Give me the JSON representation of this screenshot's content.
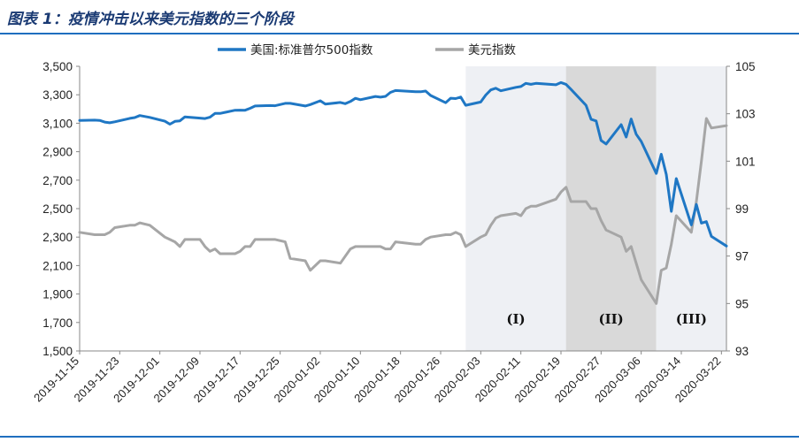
{
  "title": "图表 1：疫情冲击以来美元指数的三个阶段",
  "colors": {
    "spx": "#1f77c4",
    "dxy": "#a6a6a6",
    "band_light": "#eef0f4",
    "band_dark": "#d9d9d9",
    "rule": "#1f6fbf",
    "title": "#1a3a73"
  },
  "chart_data": {
    "type": "line",
    "title": "",
    "legend": [
      "美国:标准普尔500指数",
      "美元指数"
    ],
    "legend_position": "top",
    "x_tick_labels": [
      "2019-11-15",
      "2019-11-23",
      "2019-12-01",
      "2019-12-09",
      "2019-12-17",
      "2019-12-25",
      "2020-01-02",
      "2020-01-10",
      "2020-01-18",
      "2020-01-26",
      "2020-02-03",
      "2020-02-11",
      "2020-02-19",
      "2020-02-27",
      "2020-03-06",
      "2020-03-14",
      "2020-03-22"
    ],
    "x_range": [
      "2019-11-15",
      "2020-03-23"
    ],
    "y_left": {
      "min": 1500,
      "max": 3500,
      "ticks": [
        "1,500",
        "1,700",
        "1,900",
        "2,100",
        "2,300",
        "2,500",
        "2,700",
        "2,900",
        "3,100",
        "3,300",
        "3,500"
      ]
    },
    "y_right": {
      "min": 93,
      "max": 105,
      "ticks": [
        "93",
        "95",
        "97",
        "99",
        "101",
        "103",
        "105"
      ]
    },
    "phases": [
      {
        "label": "(I)",
        "start": "2020-01-31",
        "end": "2020-02-20",
        "shade": "light"
      },
      {
        "label": "(II)",
        "start": "2020-02-20",
        "end": "2020-03-09",
        "shade": "dark"
      },
      {
        "label": "(III)",
        "start": "2020-03-09",
        "end": "2020-03-23",
        "shade": "light"
      }
    ],
    "series": [
      {
        "name": "美国:标准普尔500指数",
        "axis": "left",
        "points": [
          [
            "2019-11-15",
            3120
          ],
          [
            "2019-11-18",
            3122
          ],
          [
            "2019-11-19",
            3120
          ],
          [
            "2019-11-20",
            3108
          ],
          [
            "2019-11-21",
            3103
          ],
          [
            "2019-11-22",
            3110
          ],
          [
            "2019-11-25",
            3134
          ],
          [
            "2019-11-26",
            3140
          ],
          [
            "2019-11-27",
            3154
          ],
          [
            "2019-11-29",
            3141
          ],
          [
            "2019-12-02",
            3114
          ],
          [
            "2019-12-03",
            3093
          ],
          [
            "2019-12-04",
            3113
          ],
          [
            "2019-12-05",
            3117
          ],
          [
            "2019-12-06",
            3145
          ],
          [
            "2019-12-09",
            3136
          ],
          [
            "2019-12-10",
            3133
          ],
          [
            "2019-12-11",
            3142
          ],
          [
            "2019-12-12",
            3169
          ],
          [
            "2019-12-13",
            3169
          ],
          [
            "2019-12-16",
            3191
          ],
          [
            "2019-12-17",
            3192
          ],
          [
            "2019-12-18",
            3191
          ],
          [
            "2019-12-19",
            3205
          ],
          [
            "2019-12-20",
            3221
          ],
          [
            "2019-12-23",
            3224
          ],
          [
            "2019-12-24",
            3223
          ],
          [
            "2019-12-26",
            3240
          ],
          [
            "2019-12-27",
            3240
          ],
          [
            "2019-12-30",
            3221
          ],
          [
            "2019-12-31",
            3231
          ],
          [
            "2020-01-02",
            3258
          ],
          [
            "2020-01-03",
            3235
          ],
          [
            "2020-01-06",
            3246
          ],
          [
            "2020-01-07",
            3237
          ],
          [
            "2020-01-08",
            3253
          ],
          [
            "2020-01-09",
            3275
          ],
          [
            "2020-01-10",
            3265
          ],
          [
            "2020-01-13",
            3288
          ],
          [
            "2020-01-14",
            3283
          ],
          [
            "2020-01-15",
            3289
          ],
          [
            "2020-01-16",
            3317
          ],
          [
            "2020-01-17",
            3330
          ],
          [
            "2020-01-21",
            3321
          ],
          [
            "2020-01-22",
            3321
          ],
          [
            "2020-01-23",
            3326
          ],
          [
            "2020-01-24",
            3295
          ],
          [
            "2020-01-27",
            3244
          ],
          [
            "2020-01-28",
            3276
          ],
          [
            "2020-01-29",
            3273
          ],
          [
            "2020-01-30",
            3284
          ],
          [
            "2020-01-31",
            3226
          ],
          [
            "2020-02-03",
            3249
          ],
          [
            "2020-02-04",
            3298
          ],
          [
            "2020-02-05",
            3334
          ],
          [
            "2020-02-06",
            3346
          ],
          [
            "2020-02-07",
            3328
          ],
          [
            "2020-02-10",
            3352
          ],
          [
            "2020-02-11",
            3358
          ],
          [
            "2020-02-12",
            3380
          ],
          [
            "2020-02-13",
            3373
          ],
          [
            "2020-02-14",
            3380
          ],
          [
            "2020-02-18",
            3370
          ],
          [
            "2020-02-19",
            3386
          ],
          [
            "2020-02-20",
            3373
          ],
          [
            "2020-02-21",
            3338
          ],
          [
            "2020-02-24",
            3226
          ],
          [
            "2020-02-25",
            3128
          ],
          [
            "2020-02-26",
            3116
          ],
          [
            "2020-02-27",
            2979
          ],
          [
            "2020-02-28",
            2954
          ],
          [
            "2020-03-02",
            3090
          ],
          [
            "2020-03-03",
            3003
          ],
          [
            "2020-03-04",
            3130
          ],
          [
            "2020-03-05",
            3023
          ],
          [
            "2020-03-06",
            2972
          ],
          [
            "2020-03-09",
            2747
          ],
          [
            "2020-03-10",
            2882
          ],
          [
            "2020-03-11",
            2741
          ],
          [
            "2020-03-12",
            2481
          ],
          [
            "2020-03-13",
            2711
          ],
          [
            "2020-03-16",
            2386
          ],
          [
            "2020-03-17",
            2529
          ],
          [
            "2020-03-18",
            2398
          ],
          [
            "2020-03-19",
            2409
          ],
          [
            "2020-03-20",
            2305
          ],
          [
            "2020-03-23",
            2237
          ]
        ]
      },
      {
        "name": "美元指数",
        "axis": "right",
        "points": [
          [
            "2019-11-15",
            98.0
          ],
          [
            "2019-11-18",
            97.9
          ],
          [
            "2019-11-19",
            97.9
          ],
          [
            "2019-11-20",
            97.9
          ],
          [
            "2019-11-21",
            98.0
          ],
          [
            "2019-11-22",
            98.2
          ],
          [
            "2019-11-25",
            98.3
          ],
          [
            "2019-11-26",
            98.3
          ],
          [
            "2019-11-27",
            98.4
          ],
          [
            "2019-11-29",
            98.3
          ],
          [
            "2019-12-02",
            97.8
          ],
          [
            "2019-12-03",
            97.7
          ],
          [
            "2019-12-04",
            97.6
          ],
          [
            "2019-12-05",
            97.4
          ],
          [
            "2019-12-06",
            97.7
          ],
          [
            "2019-12-09",
            97.7
          ],
          [
            "2019-12-10",
            97.4
          ],
          [
            "2019-12-11",
            97.2
          ],
          [
            "2019-12-12",
            97.3
          ],
          [
            "2019-12-13",
            97.1
          ],
          [
            "2019-12-16",
            97.1
          ],
          [
            "2019-12-17",
            97.2
          ],
          [
            "2019-12-18",
            97.4
          ],
          [
            "2019-12-19",
            97.4
          ],
          [
            "2019-12-20",
            97.7
          ],
          [
            "2019-12-23",
            97.7
          ],
          [
            "2019-12-24",
            97.7
          ],
          [
            "2019-12-26",
            97.6
          ],
          [
            "2019-12-27",
            96.9
          ],
          [
            "2019-12-30",
            96.8
          ],
          [
            "2019-12-31",
            96.4
          ],
          [
            "2020-01-02",
            96.8
          ],
          [
            "2020-01-03",
            96.8
          ],
          [
            "2020-01-06",
            96.7
          ],
          [
            "2020-01-07",
            97.0
          ],
          [
            "2020-01-08",
            97.3
          ],
          [
            "2020-01-09",
            97.4
          ],
          [
            "2020-01-10",
            97.4
          ],
          [
            "2020-01-13",
            97.4
          ],
          [
            "2020-01-14",
            97.4
          ],
          [
            "2020-01-15",
            97.3
          ],
          [
            "2020-01-16",
            97.3
          ],
          [
            "2020-01-17",
            97.6
          ],
          [
            "2020-01-21",
            97.5
          ],
          [
            "2020-01-22",
            97.5
          ],
          [
            "2020-01-23",
            97.7
          ],
          [
            "2020-01-24",
            97.8
          ],
          [
            "2020-01-27",
            97.9
          ],
          [
            "2020-01-28",
            97.9
          ],
          [
            "2020-01-29",
            98.0
          ],
          [
            "2020-01-30",
            97.9
          ],
          [
            "2020-01-31",
            97.4
          ],
          [
            "2020-02-03",
            97.8
          ],
          [
            "2020-02-04",
            97.9
          ],
          [
            "2020-02-05",
            98.3
          ],
          [
            "2020-02-06",
            98.6
          ],
          [
            "2020-02-07",
            98.7
          ],
          [
            "2020-02-10",
            98.8
          ],
          [
            "2020-02-11",
            98.7
          ],
          [
            "2020-02-12",
            99.0
          ],
          [
            "2020-02-13",
            99.1
          ],
          [
            "2020-02-14",
            99.1
          ],
          [
            "2020-02-18",
            99.4
          ],
          [
            "2020-02-19",
            99.7
          ],
          [
            "2020-02-20",
            99.9
          ],
          [
            "2020-02-21",
            99.3
          ],
          [
            "2020-02-24",
            99.3
          ],
          [
            "2020-02-25",
            99.0
          ],
          [
            "2020-02-26",
            99.0
          ],
          [
            "2020-02-27",
            98.5
          ],
          [
            "2020-02-28",
            98.1
          ],
          [
            "2020-03-02",
            97.8
          ],
          [
            "2020-03-03",
            97.2
          ],
          [
            "2020-03-04",
            97.4
          ],
          [
            "2020-03-05",
            96.7
          ],
          [
            "2020-03-06",
            96.0
          ],
          [
            "2020-03-09",
            95.0
          ],
          [
            "2020-03-10",
            96.4
          ],
          [
            "2020-03-11",
            96.5
          ],
          [
            "2020-03-12",
            97.5
          ],
          [
            "2020-03-13",
            98.7
          ],
          [
            "2020-03-16",
            98.0
          ],
          [
            "2020-03-17",
            99.3
          ],
          [
            "2020-03-18",
            101.0
          ],
          [
            "2020-03-19",
            102.8
          ],
          [
            "2020-03-20",
            102.4
          ],
          [
            "2020-03-23",
            102.5
          ]
        ]
      }
    ]
  }
}
